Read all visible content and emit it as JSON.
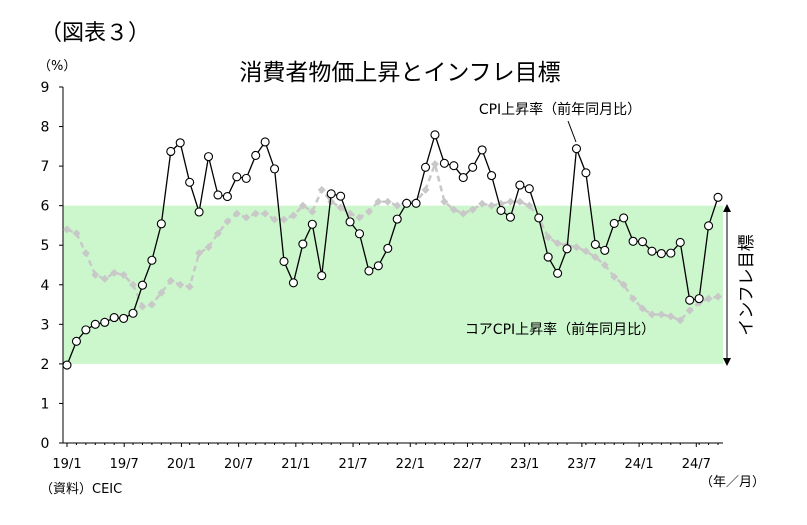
{
  "figure_label": "（図表３）",
  "source_note": "（資料）CEIC",
  "x_unit": "（年／月）",
  "y_unit": "（%）",
  "colors": {
    "band": "#ccf7cc",
    "cpi_line": "#000000",
    "cpi_marker_fill": "#ffffff",
    "core_line": "#c8c8c8"
  },
  "chart_data": {
    "type": "line",
    "title": "消費者物価上昇とインフレ目標",
    "xlabel": "",
    "ylabel": "",
    "ylim": [
      0,
      9
    ],
    "yticks": [
      0,
      1,
      2,
      3,
      4,
      5,
      6,
      7,
      8,
      9
    ],
    "x_tick_labels": [
      "19/1",
      "19/7",
      "20/1",
      "20/7",
      "21/1",
      "21/7",
      "22/1",
      "22/7",
      "23/1",
      "23/7",
      "24/1",
      "24/7"
    ],
    "x_start": "2019-01",
    "x_end": "2024-11",
    "target_band": {
      "low": 2,
      "high": 6,
      "label": "インフレ目標"
    },
    "series": [
      {
        "name": "CPI上昇率（前年同月比）",
        "style": "solid-circle-markers",
        "values": [
          1.97,
          2.57,
          2.86,
          3.0,
          3.05,
          3.17,
          3.15,
          3.28,
          3.99,
          4.62,
          5.54,
          7.37,
          7.59,
          6.59,
          5.84,
          7.24,
          6.27,
          6.23,
          6.73,
          6.69,
          7.27,
          7.61,
          6.93,
          4.59,
          4.05,
          5.03,
          5.53,
          4.23,
          6.3,
          6.24,
          5.59,
          5.29,
          4.35,
          4.48,
          4.92,
          5.66,
          6.06,
          6.06,
          6.97,
          7.79,
          7.07,
          7.01,
          6.71,
          6.97,
          7.41,
          6.76,
          5.88,
          5.71,
          6.52,
          6.43,
          5.69,
          4.7,
          4.29,
          4.91,
          7.44,
          6.83,
          5.02,
          4.87,
          5.55,
          5.69,
          5.1,
          5.09,
          4.85,
          4.79,
          4.8,
          5.07,
          3.61,
          3.65,
          5.49,
          6.21
        ]
      },
      {
        "name": "コアCPI上昇率（前年同月比）",
        "style": "dashed-diamond-markers",
        "values": [
          5.4,
          5.3,
          4.8,
          4.25,
          4.15,
          4.3,
          4.25,
          4.0,
          3.45,
          3.5,
          3.8,
          4.1,
          4.0,
          3.95,
          4.8,
          4.95,
          5.3,
          5.6,
          5.8,
          5.7,
          5.8,
          5.8,
          5.65,
          5.65,
          5.75,
          6.0,
          5.85,
          6.4,
          6.1,
          5.95,
          5.8,
          5.7,
          5.85,
          6.1,
          6.1,
          6.0,
          6.1,
          6.1,
          6.4,
          7.05,
          6.1,
          5.9,
          5.8,
          5.9,
          6.05,
          6.0,
          6.05,
          6.1,
          6.1,
          6.0,
          5.7,
          5.2,
          5.05,
          5.0,
          4.95,
          4.85,
          4.7,
          4.5,
          4.2,
          4.0,
          3.65,
          3.4,
          3.25,
          3.25,
          3.2,
          3.1,
          3.35,
          3.55,
          3.65,
          3.7
        ]
      }
    ],
    "annotations": [
      {
        "text": "CPI上昇率（前年同月比）"
      },
      {
        "text": "コアCPI上昇率（前年同月比）"
      }
    ]
  }
}
